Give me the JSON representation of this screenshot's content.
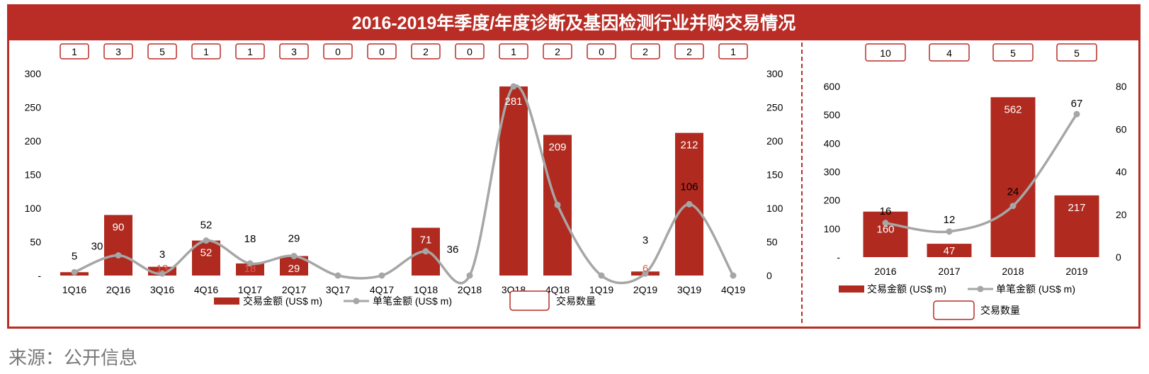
{
  "title": "2016-2019年季度/年度诊断及基因检测行业并购交易情况",
  "source": "来源：公开信息",
  "colors": {
    "accent": "#b92d26",
    "bar": "#b02a1f",
    "line": "#a6a6a6"
  },
  "legend": {
    "bar": "交易金额 (US$ m)",
    "line": "单笔金额 (US$ m)",
    "box": "交易数量"
  },
  "chart_data": [
    {
      "type": "bar+line",
      "categories": [
        "1Q16",
        "2Q16",
        "3Q16",
        "4Q16",
        "1Q17",
        "2Q17",
        "3Q17",
        "4Q17",
        "1Q18",
        "2Q18",
        "3Q18",
        "4Q18",
        "1Q19",
        "2Q19",
        "3Q19",
        "4Q19"
      ],
      "series": [
        {
          "name": "交易金额 (US$ m)",
          "type": "bar",
          "values": [
            5,
            90,
            13,
            52,
            18,
            29,
            0,
            0,
            71,
            0,
            281,
            209,
            0,
            6,
            212,
            0
          ],
          "labels": [
            "",
            "90",
            "13",
            "52",
            "18",
            "29",
            "",
            "",
            "71",
            "",
            "281",
            "209",
            "",
            "6",
            "212",
            ""
          ]
        },
        {
          "name": "单笔金额 (US$ m)",
          "type": "line",
          "values": [
            5,
            30,
            3,
            52,
            18,
            29,
            0,
            0,
            36,
            0,
            281,
            105,
            0,
            3,
            106,
            0
          ],
          "labels": [
            "5",
            "30",
            "3",
            "52",
            "18",
            "29",
            "",
            "",
            "36",
            "",
            "",
            "",
            "",
            "3",
            "106",
            ""
          ]
        },
        {
          "name": "交易数量",
          "type": "count",
          "values": [
            "1",
            "3",
            "5",
            "1",
            "1",
            "3",
            "0",
            "0",
            "2",
            "0",
            "1",
            "2",
            "0",
            "2",
            "2",
            "1"
          ]
        }
      ],
      "y_ticks": [
        "-",
        "50",
        "100",
        "150",
        "200",
        "250",
        "300"
      ],
      "y2_ticks": [
        "0",
        "50",
        "100",
        "150",
        "200",
        "250",
        "300"
      ],
      "ylim": [
        0,
        300
      ]
    },
    {
      "type": "bar+line",
      "categories": [
        "2016",
        "2017",
        "2018",
        "2019"
      ],
      "series": [
        {
          "name": "交易金额 (US$ m)",
          "type": "bar",
          "values": [
            160,
            47,
            562,
            217
          ],
          "labels": [
            "160",
            "47",
            "562",
            "217"
          ]
        },
        {
          "name": "单笔金额 (US$ m)",
          "type": "line",
          "values": [
            16,
            12,
            24,
            67
          ],
          "labels": [
            "16",
            "12",
            "24",
            "67"
          ]
        },
        {
          "name": "交易数量",
          "type": "count",
          "values": [
            "10",
            "4",
            "5",
            "5"
          ]
        }
      ],
      "y_ticks": [
        "-",
        "100",
        "200",
        "300",
        "400",
        "500",
        "600"
      ],
      "y2_ticks": [
        "0",
        "20",
        "40",
        "60",
        "80"
      ],
      "ylim": [
        0,
        600
      ],
      "y2lim": [
        0,
        80
      ]
    }
  ]
}
